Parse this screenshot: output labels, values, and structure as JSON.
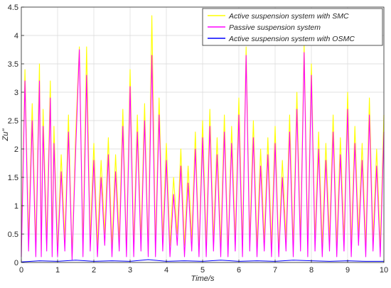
{
  "chart_data": {
    "type": "line",
    "xlabel": "Time/s",
    "ylabel": "Zu''",
    "xlim": [
      0,
      10
    ],
    "ylim": [
      0,
      4.5
    ],
    "xticks": [
      "0",
      "1",
      "2",
      "3",
      "4",
      "5",
      "6",
      "7",
      "8",
      "9",
      "10"
    ],
    "yticks": [
      "0",
      "0.5",
      "1",
      "1.5",
      "2",
      "2.5",
      "3",
      "3.5",
      "4",
      "4.5"
    ],
    "grid": true,
    "legend_position": "top-right",
    "series": [
      {
        "name": "Active suspension system with SMC",
        "color": "#ffff00",
        "x": [
          0,
          0.1,
          0.2,
          0.3,
          0.4,
          0.5,
          0.55,
          0.6,
          0.7,
          0.8,
          0.85,
          0.9,
          1.0,
          1.1,
          1.2,
          1.3,
          1.4,
          1.5,
          1.6,
          1.7,
          1.8,
          1.9,
          2.0,
          2.1,
          2.2,
          2.3,
          2.4,
          2.5,
          2.6,
          2.7,
          2.8,
          2.9,
          3.0,
          3.1,
          3.2,
          3.3,
          3.4,
          3.5,
          3.6,
          3.7,
          3.8,
          3.9,
          4.0,
          4.1,
          4.2,
          4.3,
          4.4,
          4.5,
          4.6,
          4.7,
          4.8,
          4.9,
          5.0,
          5.1,
          5.2,
          5.3,
          5.4,
          5.5,
          5.6,
          5.7,
          5.8,
          5.9,
          6.0,
          6.1,
          6.2,
          6.3,
          6.4,
          6.5,
          6.6,
          6.7,
          6.8,
          6.9,
          7.0,
          7.1,
          7.2,
          7.3,
          7.4,
          7.5,
          7.6,
          7.7,
          7.8,
          7.9,
          8.0,
          8.1,
          8.2,
          8.3,
          8.4,
          8.5,
          8.6,
          8.7,
          8.8,
          8.9,
          9.0,
          9.1,
          9.2,
          9.3,
          9.4,
          9.5,
          9.6,
          9.7,
          9.8,
          9.9,
          10.0
        ],
        "values": [
          0.3,
          3.4,
          0.4,
          2.8,
          0.3,
          3.5,
          0.2,
          2.7,
          0.4,
          3.2,
          0.3,
          2.4,
          0.2,
          1.9,
          0.4,
          2.6,
          0.1,
          2.3,
          3.8,
          0.3,
          3.8,
          0.4,
          2.1,
          0.3,
          1.8,
          0.5,
          2.2,
          0.3,
          1.9,
          0.4,
          2.7,
          0.2,
          3.4,
          0.3,
          2.6,
          0.4,
          2.8,
          0.2,
          4.35,
          0.3,
          2.9,
          0.4,
          2.1,
          0.3,
          1.5,
          0.5,
          2.0,
          0.3,
          1.7,
          0.4,
          2.3,
          0.2,
          2.5,
          0.3,
          2.7,
          0.4,
          2.2,
          0.3,
          2.6,
          0.2,
          2.4,
          0.4,
          2.9,
          0.3,
          3.8,
          0.4,
          2.5,
          0.3,
          2.0,
          0.4,
          2.2,
          0.3,
          2.4,
          0.2,
          1.8,
          0.4,
          2.6,
          0.3,
          3.0,
          0.4,
          3.85,
          0.3,
          3.5,
          0.4,
          2.3,
          0.3,
          2.1,
          0.4,
          2.6,
          0.3,
          2.2,
          0.4,
          3.0,
          0.3,
          2.4,
          0.5,
          2.1,
          0.3,
          2.9,
          0.4,
          2.0,
          0.3,
          2.6
        ]
      },
      {
        "name": "Passive suspension system",
        "color": "#ff00ff",
        "x": [
          0,
          0.1,
          0.2,
          0.3,
          0.4,
          0.5,
          0.55,
          0.6,
          0.7,
          0.8,
          0.85,
          0.9,
          1.0,
          1.1,
          1.2,
          1.3,
          1.4,
          1.5,
          1.6,
          1.7,
          1.8,
          1.9,
          2.0,
          2.1,
          2.2,
          2.3,
          2.4,
          2.5,
          2.6,
          2.7,
          2.8,
          2.9,
          3.0,
          3.1,
          3.2,
          3.3,
          3.4,
          3.5,
          3.6,
          3.7,
          3.8,
          3.9,
          4.0,
          4.1,
          4.2,
          4.3,
          4.4,
          4.5,
          4.6,
          4.7,
          4.8,
          4.9,
          5.0,
          5.1,
          5.2,
          5.3,
          5.4,
          5.5,
          5.6,
          5.7,
          5.8,
          5.9,
          6.0,
          6.1,
          6.2,
          6.3,
          6.4,
          6.5,
          6.6,
          6.7,
          6.8,
          6.9,
          7.0,
          7.1,
          7.2,
          7.3,
          7.4,
          7.5,
          7.6,
          7.7,
          7.8,
          7.9,
          8.0,
          8.1,
          8.2,
          8.3,
          8.4,
          8.5,
          8.6,
          8.7,
          8.8,
          8.9,
          9.0,
          9.1,
          9.2,
          9.3,
          9.4,
          9.5,
          9.6,
          9.7,
          9.8,
          9.9,
          10.0
        ],
        "values": [
          0.1,
          3.2,
          0.2,
          2.5,
          0.1,
          3.2,
          0.1,
          2.4,
          0.2,
          2.9,
          0.1,
          2.1,
          0.1,
          1.6,
          0.2,
          2.3,
          0.05,
          2.0,
          3.75,
          0.1,
          3.3,
          0.2,
          1.8,
          0.1,
          1.5,
          0.3,
          1.9,
          0.1,
          1.6,
          0.2,
          2.4,
          0.1,
          3.1,
          0.1,
          2.3,
          0.2,
          2.5,
          0.1,
          3.65,
          0.1,
          2.6,
          0.2,
          1.8,
          0.1,
          1.2,
          0.3,
          1.7,
          0.1,
          1.4,
          0.2,
          2.0,
          0.1,
          2.2,
          0.1,
          2.4,
          0.2,
          1.9,
          0.1,
          2.3,
          0.1,
          2.1,
          0.2,
          2.6,
          0.1,
          3.65,
          0.2,
          2.2,
          0.1,
          1.7,
          0.2,
          1.9,
          0.1,
          2.1,
          0.1,
          1.5,
          0.2,
          2.3,
          0.1,
          2.7,
          0.2,
          3.7,
          0.1,
          3.3,
          0.2,
          2.0,
          0.1,
          1.8,
          0.2,
          2.3,
          0.1,
          1.9,
          0.2,
          2.7,
          0.1,
          2.1,
          0.3,
          1.8,
          0.1,
          2.6,
          0.2,
          1.7,
          0.1,
          2.3
        ]
      },
      {
        "name": "Active suspension system with OSMC",
        "color": "#0000ff",
        "x": [
          0,
          0.5,
          1.0,
          1.5,
          2.0,
          2.5,
          3.0,
          3.5,
          4.0,
          4.5,
          5.0,
          5.5,
          6.0,
          6.5,
          7.0,
          7.5,
          8.0,
          8.5,
          9.0,
          9.5,
          10.0
        ],
        "values": [
          0.01,
          0.03,
          0.02,
          0.04,
          0.02,
          0.03,
          0.02,
          0.05,
          0.02,
          0.03,
          0.02,
          0.04,
          0.02,
          0.03,
          0.02,
          0.04,
          0.03,
          0.02,
          0.03,
          0.02,
          0.02
        ]
      }
    ]
  }
}
